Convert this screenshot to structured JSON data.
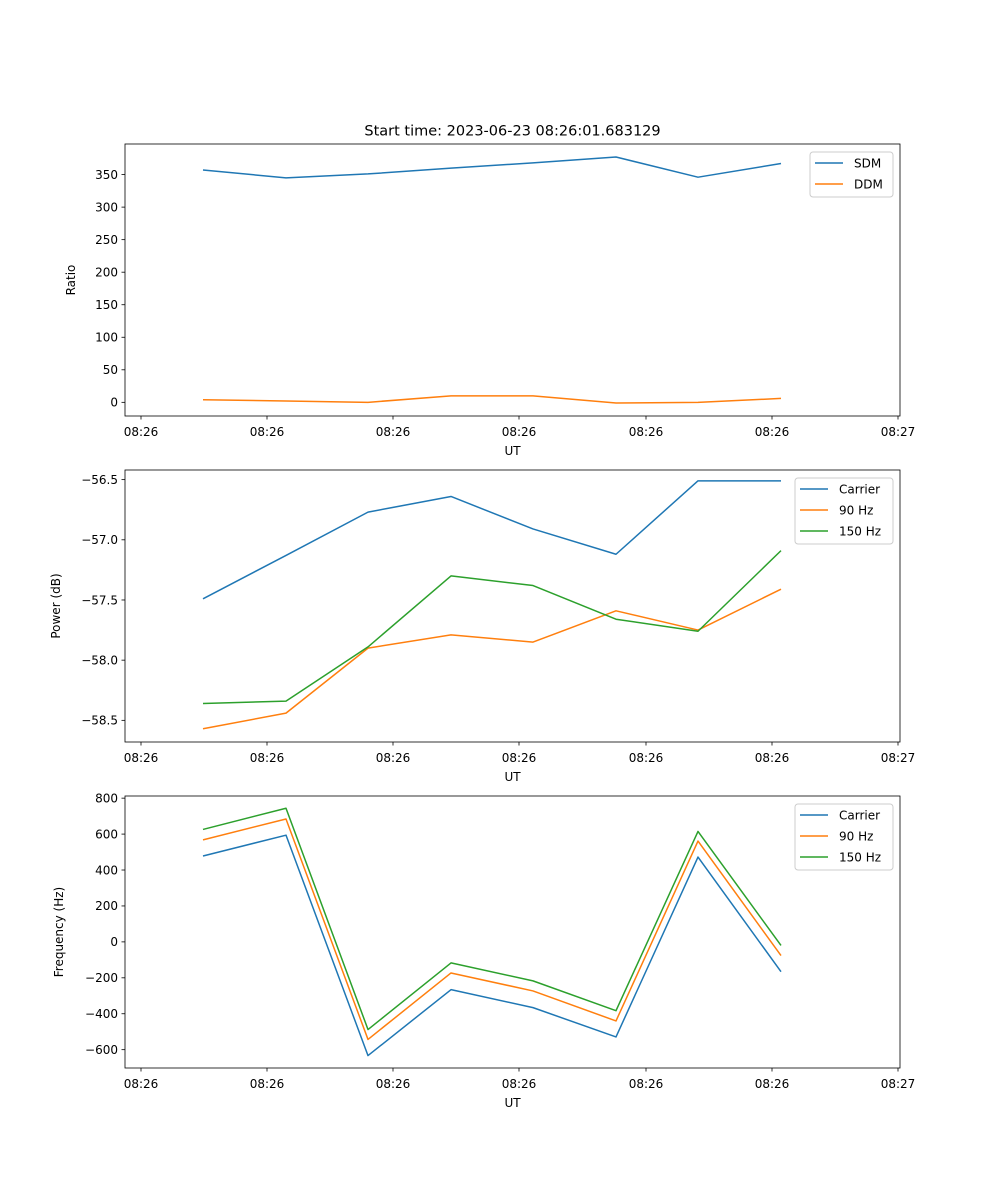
{
  "figure_title": "Start time: 2023-06-23 08:26:01.683129",
  "colors": {
    "blue": "#1f77b4",
    "orange": "#ff7f0e",
    "green": "#2ca02c"
  },
  "chart_data": [
    {
      "type": "line",
      "title": "Start time: 2023-06-23 08:26:01.683129",
      "xlabel": "UT",
      "ylabel": "Ratio",
      "x_ticks": [
        "08:26",
        "08:26",
        "08:26",
        "08:26",
        "08:26",
        "08:26",
        "08:27"
      ],
      "y_ticks": [
        0,
        50,
        100,
        150,
        200,
        250,
        300,
        350
      ],
      "ylim": [
        -21,
        397
      ],
      "legend_loc": "upper right",
      "series": [
        {
          "name": "SDM",
          "color": "#1f77b4",
          "values": [
            357,
            345,
            351,
            360,
            368,
            377,
            346,
            367
          ]
        },
        {
          "name": "DDM",
          "color": "#ff7f0e",
          "values": [
            4,
            2,
            0,
            10,
            10,
            -1,
            0,
            6
          ]
        }
      ]
    },
    {
      "type": "line",
      "title": "",
      "xlabel": "UT",
      "ylabel": "Power (dB)",
      "x_ticks": [
        "08:26",
        "08:26",
        "08:26",
        "08:26",
        "08:26",
        "08:26",
        "08:27"
      ],
      "y_ticks": [
        -58.5,
        -58.0,
        -57.5,
        -57.0,
        -56.5
      ],
      "ylim": [
        -58.68,
        -56.42
      ],
      "legend_loc": "upper right",
      "series": [
        {
          "name": "Carrier",
          "color": "#1f77b4",
          "values": [
            -57.49,
            -57.13,
            -56.77,
            -56.64,
            -56.91,
            -57.12,
            -56.51,
            -56.51
          ]
        },
        {
          "name": "90 Hz",
          "color": "#ff7f0e",
          "values": [
            -58.57,
            -58.44,
            -57.9,
            -57.79,
            -57.85,
            -57.59,
            -57.75,
            -57.41
          ]
        },
        {
          "name": "150 Hz",
          "color": "#2ca02c",
          "values": [
            -58.36,
            -58.34,
            -57.89,
            -57.3,
            -57.38,
            -57.66,
            -57.76,
            -57.09
          ]
        }
      ]
    },
    {
      "type": "line",
      "title": "",
      "xlabel": "UT",
      "ylabel": "Frequency (Hz)",
      "x_ticks": [
        "08:26",
        "08:26",
        "08:26",
        "08:26",
        "08:26",
        "08:26",
        "08:27"
      ],
      "y_ticks": [
        -600,
        -400,
        -200,
        0,
        200,
        400,
        600,
        800
      ],
      "ylim": [
        -702,
        812
      ],
      "legend_loc": "upper right",
      "series": [
        {
          "name": "Carrier",
          "color": "#1f77b4",
          "values": [
            478,
            594,
            -633,
            -266,
            -366,
            -529,
            472,
            -166
          ]
        },
        {
          "name": "90 Hz",
          "color": "#ff7f0e",
          "values": [
            568,
            684,
            -543,
            -173,
            -273,
            -440,
            561,
            -76
          ]
        },
        {
          "name": "150 Hz",
          "color": "#2ca02c",
          "values": [
            626,
            744,
            -488,
            -117,
            -217,
            -383,
            615,
            -20
          ]
        }
      ]
    }
  ]
}
